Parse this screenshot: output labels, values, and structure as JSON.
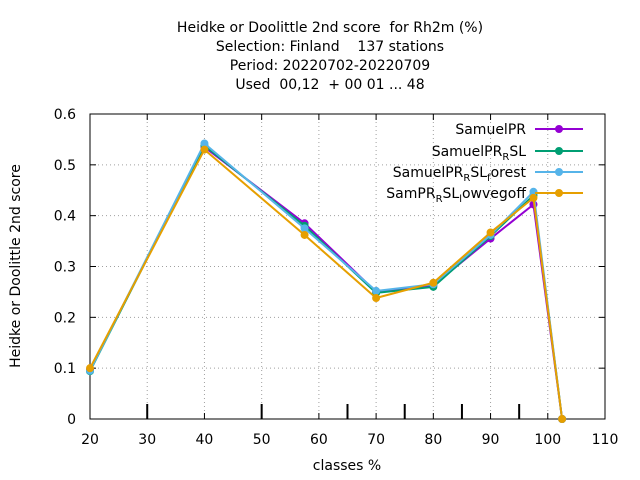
{
  "chart_data": {
    "type": "line",
    "title_lines": [
      "Heidke or Doolittle 2nd score  for Rh2m (%)",
      "Selection: Finland    137 stations",
      "Period: 20220702-20220709",
      "Used  00,12  + 00 01 ... 48"
    ],
    "xlabel": "classes %",
    "ylabel": "Heidke or Doolittle 2nd score",
    "xlim": [
      20,
      110
    ],
    "ylim": [
      0,
      0.6
    ],
    "xticks": [
      "20",
      "30",
      "40",
      "50",
      "60",
      "70",
      "80",
      "90",
      "100",
      "110"
    ],
    "yticks": [
      "0",
      "0.1",
      "0.2",
      "0.3",
      "0.4",
      "0.5",
      "0.6"
    ],
    "grid": true,
    "legend_position": "top-right",
    "class_markers": [
      30,
      50,
      65,
      75,
      85,
      95
    ],
    "x": [
      20,
      40,
      57.5,
      70,
      80,
      90,
      97.5,
      102.5
    ],
    "series": [
      {
        "legend": {
          "main": "SamuelPR",
          "parts": []
        },
        "color": "#9400d3",
        "values": [
          0.097,
          0.535,
          0.385,
          0.25,
          0.263,
          0.355,
          0.422,
          0.0
        ]
      },
      {
        "legend": {
          "main": "SamuelPR",
          "parts": [
            [
              "R",
              "sub"
            ],
            [
              "SL",
              ""
            ]
          ]
        },
        "color": "#009e73",
        "values": [
          0.094,
          0.538,
          0.38,
          0.248,
          0.26,
          0.36,
          0.44,
          0.0
        ]
      },
      {
        "legend": {
          "main": "SamuelPR",
          "parts": [
            [
              "R",
              "sub"
            ],
            [
              "SL",
              ""
            ],
            [
              "f",
              "sub"
            ],
            [
              "orest",
              ""
            ]
          ]
        },
        "color": "#56b4e9",
        "values": [
          0.095,
          0.542,
          0.375,
          0.252,
          0.265,
          0.362,
          0.447,
          0.0
        ]
      },
      {
        "legend": {
          "main": "SamPR",
          "parts": [
            [
              "R",
              "sub"
            ],
            [
              "SL",
              ""
            ],
            [
              "l",
              "sub"
            ],
            [
              "owvegoff",
              ""
            ]
          ]
        },
        "color": "#e69f00",
        "values": [
          0.1,
          0.53,
          0.362,
          0.238,
          0.268,
          0.367,
          0.435,
          0.0
        ]
      }
    ]
  }
}
